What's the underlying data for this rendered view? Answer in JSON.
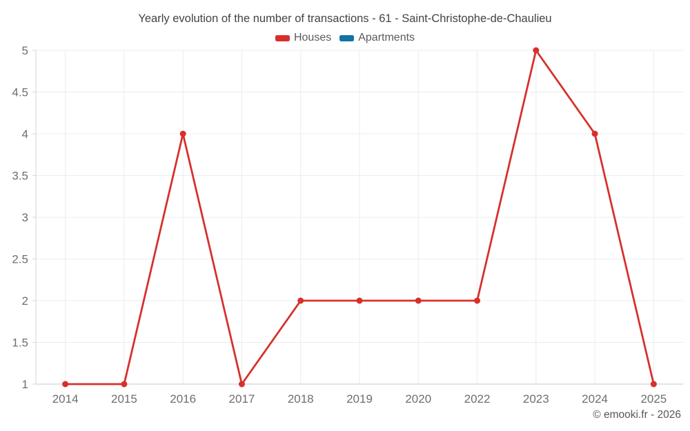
{
  "watermark": "© emooki.fr - 2026",
  "legend": {
    "items": [
      {
        "label": "Houses",
        "color": "#d7302c"
      },
      {
        "label": "Apartments",
        "color": "#1273a5"
      }
    ]
  },
  "chart_data": {
    "type": "line",
    "title": "Yearly evolution of the number of transactions - 61 - Saint-Christophe-de-Chaulieu",
    "categories": [
      "2014",
      "2015",
      "2016",
      "2017",
      "2018",
      "2019",
      "2020",
      "2022",
      "2023",
      "2024",
      "2025"
    ],
    "series": [
      {
        "name": "Houses",
        "color": "#d7302c",
        "values": [
          1,
          1,
          4,
          1,
          2,
          2,
          2,
          2,
          5,
          4,
          1
        ]
      },
      {
        "name": "Apartments",
        "color": "#1273a5",
        "values": []
      }
    ],
    "xlabel": "",
    "ylabel": "",
    "ylim": [
      1,
      5
    ],
    "ytick_step": 0.5,
    "grid": true,
    "legend_position": "top"
  },
  "style": {
    "background": "#ffffff",
    "grid_color": "#ececec",
    "x_axis_line_color": "#c9c9c9",
    "y_axis_line_color": "#d6d6d6",
    "tick_label_color": "#6e6e6e",
    "title_color": "#434343",
    "legend_text_color": "#5a5a5a",
    "watermark_color": "#565656"
  }
}
